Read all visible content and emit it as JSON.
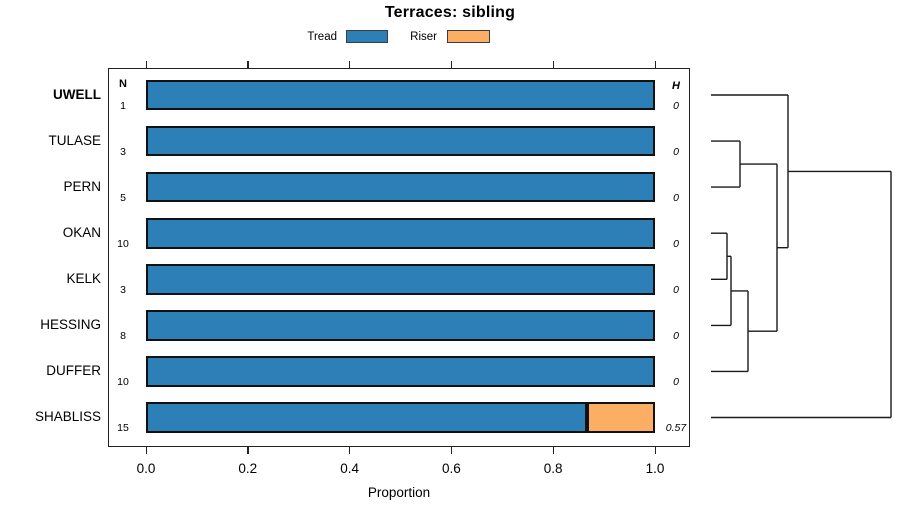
{
  "chart_data": {
    "type": "bar",
    "orientation": "horizontal",
    "stacked": true,
    "title": "Terraces: sibling",
    "xlabel": "Proportion",
    "xlim": [
      0,
      1.04
    ],
    "grid": false,
    "legend_position": "top",
    "x_tick_values": [
      0,
      0.2,
      0.4,
      0.6,
      0.8,
      1.0
    ],
    "x_tick_labels": [
      "0.0",
      "0.2",
      "0.4",
      "0.6",
      "0.8",
      "1.0"
    ],
    "categories": [
      "UWELL",
      "TULASE",
      "PERN",
      "OKAN",
      "KELK",
      "HESSING",
      "DUFFER",
      "SHABLISS"
    ],
    "highlighted_category": "UWELL",
    "series": [
      {
        "name": "Tread",
        "color": "#2d7fb8",
        "values": [
          1,
          1,
          1,
          1,
          1,
          1,
          1,
          0.867
        ]
      },
      {
        "name": "Riser",
        "color": "#fcae64",
        "values": [
          0,
          0,
          0,
          0,
          0,
          0,
          0,
          0.133
        ]
      }
    ],
    "n_header": "N",
    "n_values": [
      1,
      3,
      5,
      10,
      3,
      8,
      10,
      15
    ],
    "h_header": "H",
    "h_values": [
      "0",
      "0",
      "0",
      "0",
      "0",
      "0",
      "0",
      "0.57"
    ],
    "bar_border_color": "#111111",
    "dendrogram_segments": [
      [
        711,
        95,
        788,
        95
      ],
      [
        711,
        141.1,
        740,
        141.1
      ],
      [
        711,
        187.1,
        740,
        187.1
      ],
      [
        711,
        233.2,
        727,
        233.2
      ],
      [
        711,
        279.3,
        727,
        279.3
      ],
      [
        711,
        325.4,
        731,
        325.4
      ],
      [
        711,
        371.4,
        748,
        371.4
      ],
      [
        711,
        417.5,
        891,
        417.5
      ],
      [
        740,
        141.1,
        740,
        187.1
      ],
      [
        740,
        164.1,
        777,
        164.1
      ],
      [
        727,
        233.2,
        727,
        279.3
      ],
      [
        727,
        256.3,
        731,
        256.3
      ],
      [
        731,
        256.3,
        731,
        325.4
      ],
      [
        731,
        290.9,
        748,
        290.9
      ],
      [
        748,
        290.9,
        748,
        371.4
      ],
      [
        748,
        331.2,
        777,
        331.2
      ],
      [
        777,
        164.1,
        777,
        331.2
      ],
      [
        777,
        247.7,
        788,
        247.7
      ],
      [
        788,
        95,
        788,
        247.7
      ],
      [
        788,
        171.4,
        891,
        171.4
      ],
      [
        891,
        171.4,
        891,
        417.5
      ]
    ]
  }
}
